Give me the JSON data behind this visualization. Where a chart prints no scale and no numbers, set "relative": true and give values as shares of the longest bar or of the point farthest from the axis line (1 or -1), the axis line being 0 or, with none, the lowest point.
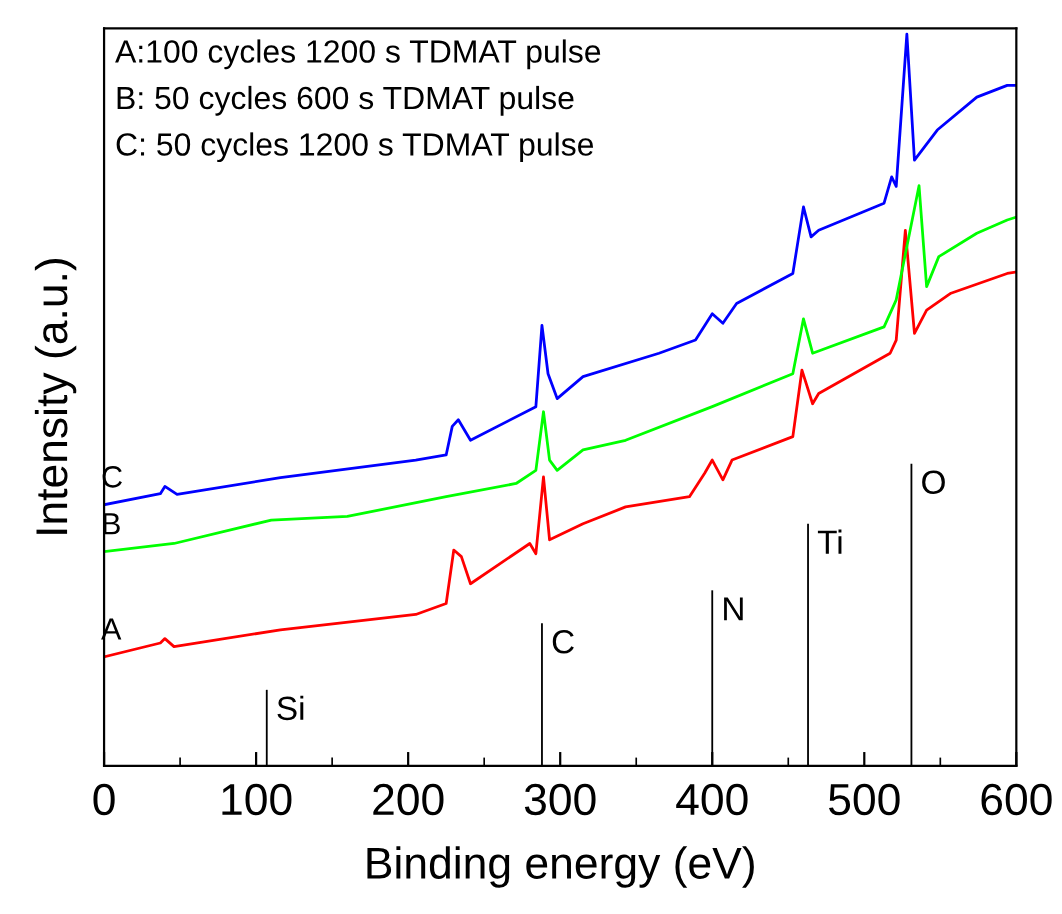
{
  "chart_data": {
    "type": "line",
    "relative": true,
    "xlabel": "Binding energy (eV)",
    "ylabel": "Intensity (a.u.)",
    "xlim": [
      0,
      600
    ],
    "xticks": [
      0,
      {
        "value": 50,
        "label": null
      },
      100,
      {
        "value": 150,
        "label": null
      },
      200,
      {
        "value": 250,
        "label": null
      },
      300,
      {
        "value": 350,
        "label": null
      },
      400,
      {
        "value": 450,
        "label": null
      },
      500,
      {
        "value": 550,
        "label": null
      },
      600
    ],
    "tick_labels": "x",
    "grid": false,
    "legend": false,
    "annotations": [
      "A:100 cycles 1200 s TDMAT pulse",
      "B: 50 cycles 600 s TDMAT pulse",
      "C: 50 cycles 1200 s TDMAT pulse",
      {
        "text": "Si",
        "x": 107,
        "y": 0.104
      },
      {
        "text": "C",
        "x": 288,
        "y": 0.195
      },
      {
        "text": "N",
        "x": 400,
        "y": 0.24
      },
      {
        "text": "Ti",
        "x": 463,
        "y": 0.331
      },
      {
        "text": "O",
        "x": 531,
        "y": 0.413
      }
    ],
    "series": [
      {
        "name": "A",
        "color": "#ff0000",
        "x": [
          0,
          37,
          40,
          46,
          116,
          205,
          225,
          230,
          235,
          241,
          280,
          284,
          289,
          293,
          315,
          343,
          385,
          395,
          400,
          407,
          413,
          453,
          459,
          466,
          470,
          517,
          521,
          527,
          533,
          541,
          557,
          594,
          600
        ],
        "values": [
          0.149,
          0.168,
          0.174,
          0.163,
          0.186,
          0.207,
          0.222,
          0.295,
          0.286,
          0.249,
          0.304,
          0.29,
          0.395,
          0.309,
          0.331,
          0.354,
          0.368,
          0.4,
          0.418,
          0.391,
          0.418,
          0.45,
          0.541,
          0.495,
          0.509,
          0.564,
          0.582,
          0.732,
          0.591,
          0.623,
          0.646,
          0.673,
          0.675
        ]
      },
      {
        "name": "B",
        "color": "#00ff00",
        "x": [
          0,
          46,
          110,
          160,
          225,
          271,
          284,
          289,
          293,
          298,
          315,
          343,
          400,
          453,
          460,
          466,
          513,
          521,
          536,
          541,
          549,
          574,
          594,
          600
        ],
        "values": [
          0.293,
          0.304,
          0.336,
          0.341,
          0.368,
          0.386,
          0.404,
          0.484,
          0.418,
          0.404,
          0.432,
          0.445,
          0.491,
          0.536,
          0.611,
          0.564,
          0.6,
          0.637,
          0.793,
          0.655,
          0.696,
          0.728,
          0.746,
          0.75
        ]
      },
      {
        "name": "C",
        "color": "#0000ff",
        "x": [
          0,
          37,
          40,
          48,
          116,
          205,
          225,
          229,
          233,
          241,
          284,
          288,
          292,
          298,
          315,
          365,
          389,
          400,
          407,
          416,
          453,
          460,
          465,
          470,
          513,
          518,
          521,
          528,
          533,
          548,
          574,
          594,
          600
        ],
        "values": [
          0.357,
          0.372,
          0.382,
          0.371,
          0.394,
          0.418,
          0.425,
          0.464,
          0.473,
          0.445,
          0.491,
          0.602,
          0.536,
          0.502,
          0.532,
          0.564,
          0.582,
          0.618,
          0.605,
          0.632,
          0.673,
          0.764,
          0.723,
          0.732,
          0.769,
          0.805,
          0.792,
          1.0,
          0.828,
          0.869,
          0.914,
          0.93,
          0.93
        ]
      },
      {
        "type": "bar",
        "color": "#000000",
        "x": [
          107,
          288,
          400,
          463,
          531
        ],
        "values": [
          0.104,
          0.195,
          0.24,
          0.331,
          0.413
        ]
      }
    ]
  }
}
